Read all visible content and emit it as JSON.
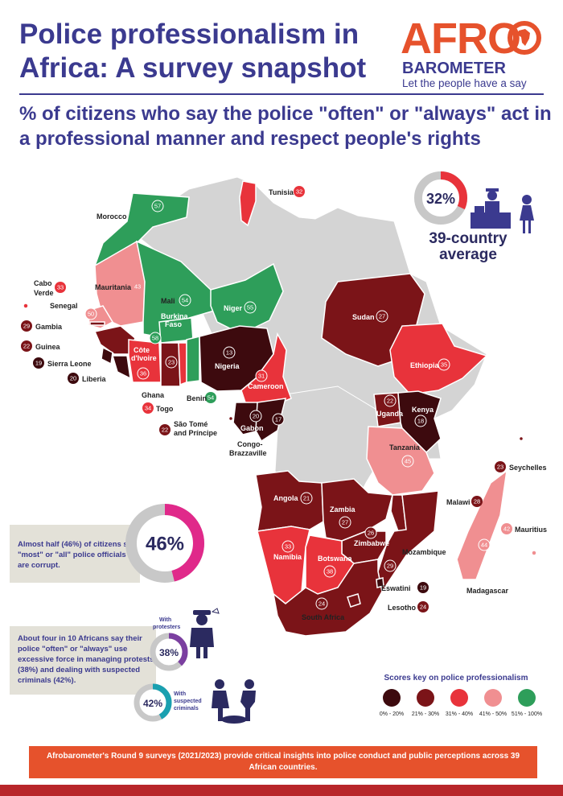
{
  "header": {
    "title": "Police professionalism in Africa: A survey snapshot",
    "subtitle": "% of citizens who say the police \"often\" or \"always\" act in a professional manner and respect people's rights"
  },
  "logo": {
    "brand_top": "AFRO",
    "brand_bottom": "BAROMETER",
    "tagline": "Let the people have a say"
  },
  "average": {
    "value": "32%",
    "fraction": 0.32,
    "label_line1": "39-country",
    "label_line2": "average"
  },
  "countries": [
    {
      "name": "Tunisia",
      "value": "32"
    },
    {
      "name": "Morocco",
      "value": "57"
    },
    {
      "name": "Mauritania",
      "value": "43"
    },
    {
      "name": "Mali",
      "value": "54"
    },
    {
      "name": "Niger",
      "value": "55"
    },
    {
      "name": "Cabo Verde",
      "value": "33"
    },
    {
      "name": "Senegal",
      "value": "50"
    },
    {
      "name": "Gambia",
      "value": "29"
    },
    {
      "name": "Guinea",
      "value": "22"
    },
    {
      "name": "Sierra Leone",
      "value": "19"
    },
    {
      "name": "Liberia",
      "value": "20"
    },
    {
      "name": "Côte d'Ivoire",
      "value": "36"
    },
    {
      "name": "Burkina Faso",
      "value": "58"
    },
    {
      "name": "Ghana",
      "value": "23"
    },
    {
      "name": "Togo",
      "value": "34"
    },
    {
      "name": "Benin",
      "value": "54"
    },
    {
      "name": "Nigeria",
      "value": "13"
    },
    {
      "name": "Cameroon",
      "value": "31"
    },
    {
      "name": "Gabon",
      "value": "20"
    },
    {
      "name": "Congo-Brazzaville",
      "value": "17"
    },
    {
      "name": "São Tomé and Príncipe",
      "value": "22"
    },
    {
      "name": "Sudan",
      "value": "27"
    },
    {
      "name": "Ethiopia",
      "value": "35"
    },
    {
      "name": "Uganda",
      "value": "22"
    },
    {
      "name": "Kenya",
      "value": "18"
    },
    {
      "name": "Tanzania",
      "value": "45"
    },
    {
      "name": "Seychelles",
      "value": "23"
    },
    {
      "name": "Angola",
      "value": "21"
    },
    {
      "name": "Zambia",
      "value": "27"
    },
    {
      "name": "Malawi",
      "value": "28"
    },
    {
      "name": "Zimbabwe",
      "value": "26"
    },
    {
      "name": "Mozambique",
      "value": "29"
    },
    {
      "name": "Mauritius",
      "value": "42"
    },
    {
      "name": "Namibia",
      "value": "33"
    },
    {
      "name": "Botswana",
      "value": "38"
    },
    {
      "name": "Madagascar",
      "value": "44"
    },
    {
      "name": "Eswatini",
      "value": "19"
    },
    {
      "name": "Lesotho",
      "value": "24"
    },
    {
      "name": "South Africa",
      "value": "24"
    }
  ],
  "corruption": {
    "value": "46%",
    "fraction": 0.46,
    "text": "Almost half (46%) of citizens say \"most\" or \"all\" police officials are corrupt."
  },
  "force": {
    "text": "About four in 10 Africans say their police \"often\" or \"always\" use excessive force in managing protests (38%) and dealing with suspected criminals (42%).",
    "protesters_value": "38%",
    "protesters_fraction": 0.38,
    "protesters_label_1": "With",
    "protesters_label_2": "protesters",
    "criminals_value": "42%",
    "criminals_fraction": 0.42,
    "criminals_label_1": "With",
    "criminals_label_2": "suspected",
    "criminals_label_3": "criminals"
  },
  "key": {
    "title": "Scores key on police professionalism",
    "items": [
      {
        "label": "0% - 20%",
        "color": "#3d0a0e"
      },
      {
        "label": "21% - 30%",
        "color": "#7b1418"
      },
      {
        "label": "31% - 40%",
        "color": "#e8333b"
      },
      {
        "label": "41% - 50%",
        "color": "#f08f91"
      },
      {
        "label": "51% - 100%",
        "color": "#2e9e5a"
      }
    ]
  },
  "colors": {
    "navy": "#3b3a8f",
    "orange": "#e6522c",
    "no_data": "#d4d4d4",
    "magenta": "#e0298a",
    "purple": "#7b3fa0",
    "teal": "#1aa0b0"
  },
  "footer": {
    "banner": "Afrobarometer's Round 9 surveys (2021/2023) provide critical insights into police conduct and public perceptions across 39 African countries."
  }
}
